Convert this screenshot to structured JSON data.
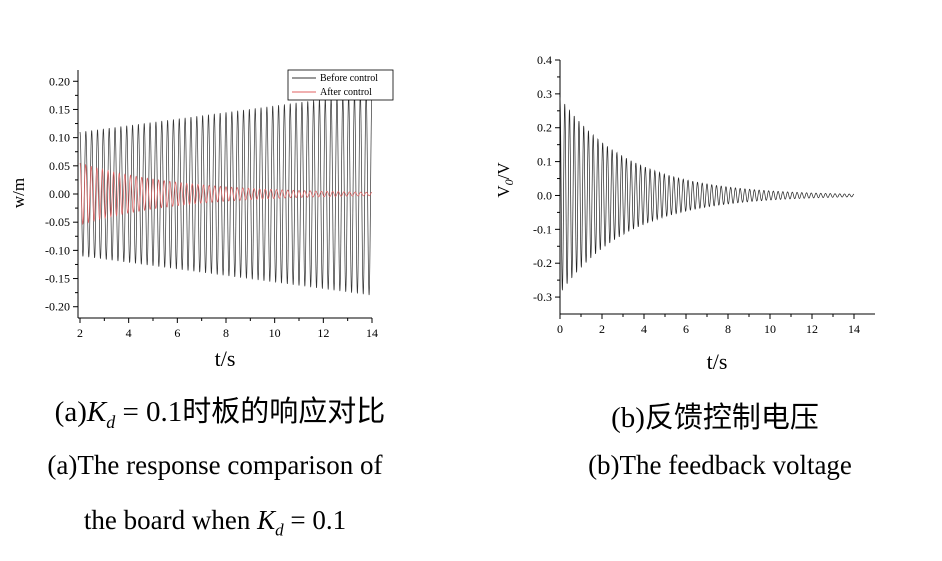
{
  "chart_data": [
    {
      "id": "a",
      "type": "line",
      "xlabel": "t/s",
      "ylabel": "w/m",
      "xlim": [
        2,
        14
      ],
      "ylim": [
        -0.22,
        0.22
      ],
      "xticks": [
        "2",
        "4",
        "6",
        "8",
        "10",
        "12",
        "14"
      ],
      "yticks": [
        "0.20",
        "0.15",
        "0.10",
        "0.05",
        "0.00",
        "-0.05",
        "-0.10",
        "-0.15",
        "-0.20"
      ],
      "ytick_values": [
        0.2,
        0.15,
        0.1,
        0.05,
        0.0,
        -0.05,
        -0.1,
        -0.15,
        -0.2
      ],
      "grid": false,
      "legend_position": "top-right",
      "series": [
        {
          "name": "Before control",
          "color": "#333333",
          "t_start": 2,
          "t_end": 14,
          "amplitude_start": 0.11,
          "amplitude_end": 0.18,
          "cycles": 50
        },
        {
          "name": "After control",
          "color": "#e06060",
          "t_start": 2,
          "t_end": 14,
          "amplitude_start": 0.055,
          "amplitude_end": 0.003,
          "cycles": 52
        }
      ]
    },
    {
      "id": "b",
      "type": "line",
      "xlabel": "t/s",
      "ylabel_main": "V",
      "ylabel_sub": "0",
      "ylabel_tail": "/V",
      "xlim": [
        0,
        15
      ],
      "ylim": [
        -0.35,
        0.4
      ],
      "xticks": [
        "0",
        "2",
        "4",
        "6",
        "8",
        "10",
        "12",
        "14"
      ],
      "xtick_values": [
        0,
        2,
        4,
        6,
        8,
        10,
        12,
        14
      ],
      "yticks": [
        "0.4",
        "0.3",
        "0.2",
        "0.1",
        "0.0",
        "-0.1",
        "-0.2",
        "-0.3"
      ],
      "ytick_values": [
        0.4,
        0.3,
        0.2,
        0.1,
        0.0,
        -0.1,
        -0.2,
        -0.3
      ],
      "grid": false,
      "series": [
        {
          "color": "#222222",
          "t_start": 0,
          "t_end": 14,
          "amplitude_start": 0.29,
          "amplitude_end": 0.004,
          "cycles": 62
        }
      ]
    }
  ],
  "captions": {
    "a_cn_prefix": "(a)",
    "a_cn_kd": "K",
    "a_cn_kd_sub": "d",
    "a_cn_suffix": " = 0.1时板的响应对比",
    "a_en_line1": "(a)The response comparison of",
    "a_en_line2_prefix": "the board when ",
    "a_en_kd": "K",
    "a_en_kd_sub": "d",
    "a_en_line2_suffix": " = 0.1",
    "b_cn": "(b)反馈控制电压",
    "b_en": "(b)The feedback voltage"
  }
}
